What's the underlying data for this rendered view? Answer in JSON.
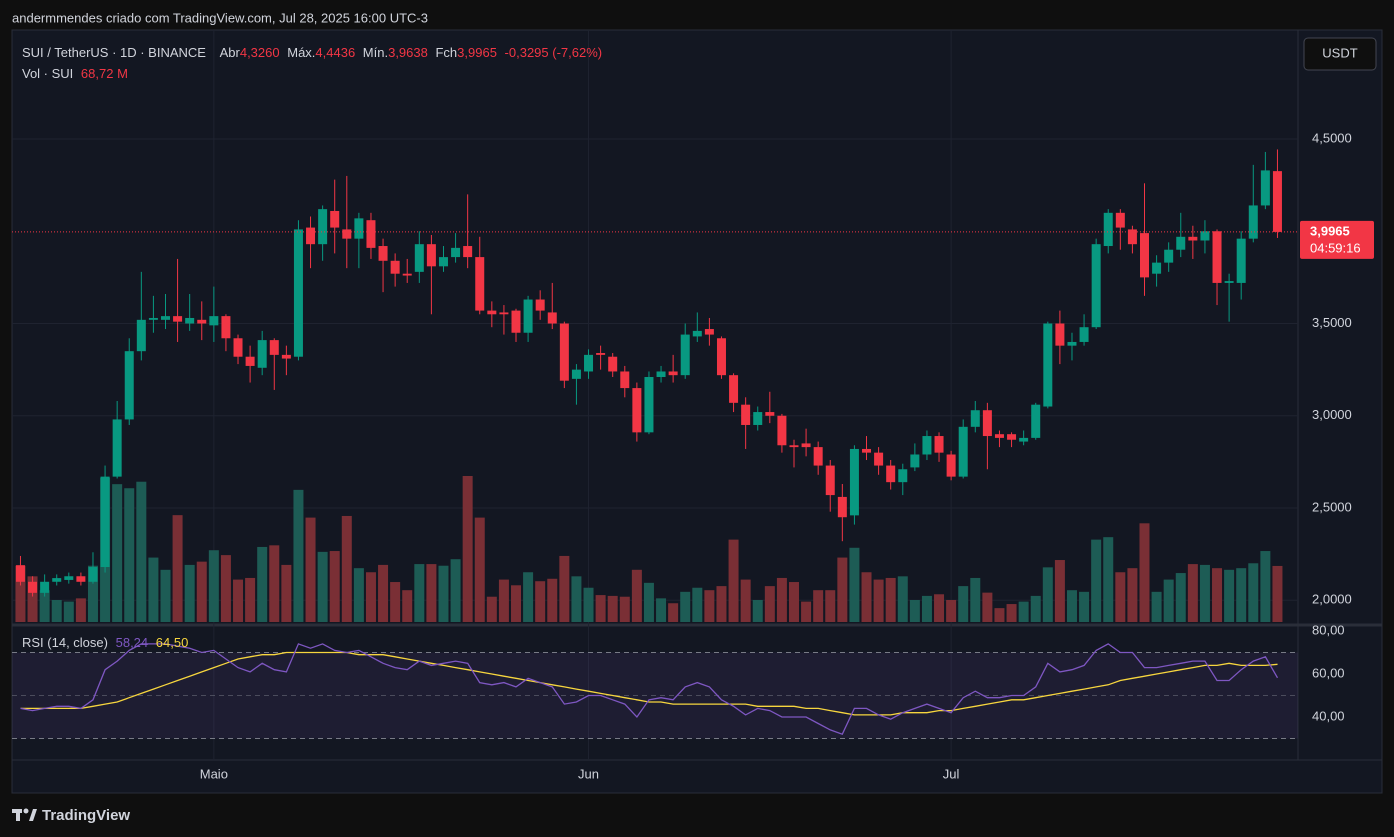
{
  "attribution": "andermmendes criado com TradingView.com, Jul 28, 2025 16:00 UTC-3",
  "logo": "TradingView",
  "currency_button": "USDT",
  "chart_data": [
    {
      "type": "candlestick",
      "title": "SUI / TetherUS · 1D · BINANCE",
      "legend": {
        "open_label": "Abr",
        "open": "4,3260",
        "high_label": "Máx.",
        "high": "4,4436",
        "low_label": "Mín.",
        "low": "3,9638",
        "close_label": "Fch",
        "close": "3,9965",
        "change": "-0,3295 (-7,62%)"
      },
      "volume_label": "Vol · SUI",
      "volume_value": "68,72 M",
      "price_tag": {
        "value_label": "3,9965",
        "countdown": "04:59:16"
      },
      "up_color": "#089981",
      "down_color": "#f23645",
      "volume_up_color": "#1d5c55",
      "volume_down_color": "#7a2f35",
      "ylim": [
        1.882,
        5.091
      ],
      "yticks": [
        {
          "value": 4.5,
          "label": "4,5000"
        },
        {
          "value": 3.5,
          "label": "3,5000"
        },
        {
          "value": 3.0,
          "label": "3,0000"
        },
        {
          "value": 2.5,
          "label": "2,5000"
        },
        {
          "value": 2.0,
          "label": "2,0000"
        }
      ],
      "xlim": [
        -0.7,
        105.7
      ],
      "xticks": [
        {
          "value": 16,
          "label": "Maio"
        },
        {
          "value": 47,
          "label": "Jun"
        },
        {
          "value": 77,
          "label": "Jul"
        }
      ],
      "open": [
        2.19,
        2.1,
        2.04,
        2.1,
        2.11,
        2.13,
        2.1,
        2.18,
        2.67,
        2.98,
        3.35,
        3.52,
        3.52,
        3.54,
        3.5,
        3.52,
        3.49,
        3.54,
        3.42,
        3.32,
        3.26,
        3.41,
        3.33,
        3.32,
        4.02,
        3.93,
        4.11,
        4.01,
        3.96,
        4.06,
        3.92,
        3.84,
        3.77,
        3.78,
        3.93,
        3.81,
        3.86,
        3.92,
        3.86,
        3.57,
        3.56,
        3.57,
        3.45,
        3.63,
        3.56,
        3.5,
        3.2,
        3.24,
        3.34,
        3.32,
        3.24,
        3.15,
        2.91,
        3.21,
        3.24,
        3.22,
        3.43,
        3.47,
        3.42,
        3.22,
        3.06,
        2.95,
        3.02,
        3.0,
        2.84,
        2.85,
        2.83,
        2.73,
        2.56,
        2.46,
        2.82,
        2.8,
        2.73,
        2.64,
        2.72,
        2.79,
        2.89,
        2.79,
        2.67,
        2.94,
        3.03,
        2.9,
        2.9,
        2.86,
        2.88,
        3.05,
        3.5,
        3.38,
        3.4,
        3.48,
        3.92,
        4.1,
        4.01,
        3.99,
        3.77,
        3.83,
        3.9,
        3.97,
        3.95,
        4.0,
        3.72,
        3.72,
        3.96,
        4.14,
        4.326
      ],
      "high": [
        2.24,
        2.13,
        2.14,
        2.14,
        2.15,
        2.15,
        2.26,
        2.73,
        3.08,
        3.42,
        3.78,
        3.65,
        3.66,
        3.85,
        3.66,
        3.62,
        3.7,
        3.55,
        3.44,
        3.38,
        3.46,
        3.42,
        3.38,
        4.06,
        4.08,
        4.14,
        4.28,
        4.3,
        4.1,
        4.1,
        3.96,
        3.88,
        3.85,
        4.0,
        3.98,
        3.92,
        3.99,
        4.2,
        3.97,
        3.62,
        3.6,
        3.58,
        3.65,
        3.68,
        3.72,
        3.51,
        3.28,
        3.36,
        3.38,
        3.34,
        3.27,
        3.18,
        3.24,
        3.27,
        3.33,
        3.5,
        3.56,
        3.53,
        3.43,
        3.23,
        3.1,
        3.05,
        3.13,
        3.01,
        2.87,
        2.93,
        2.86,
        2.76,
        2.63,
        2.84,
        2.89,
        2.83,
        2.76,
        2.74,
        2.85,
        2.92,
        2.91,
        2.81,
        2.98,
        3.08,
        3.07,
        2.92,
        2.91,
        2.92,
        3.07,
        3.51,
        3.57,
        3.45,
        3.55,
        3.96,
        4.12,
        4.12,
        4.03,
        4.26,
        3.87,
        3.94,
        4.1,
        4.03,
        4.06,
        4.01,
        3.77,
        4.0,
        4.36,
        4.43,
        4.4436
      ],
      "low": [
        2.08,
        2.02,
        2.02,
        2.08,
        2.09,
        2.08,
        2.09,
        2.15,
        2.66,
        2.95,
        3.3,
        3.45,
        3.47,
        3.4,
        3.46,
        3.41,
        3.4,
        3.35,
        3.28,
        3.18,
        3.22,
        3.14,
        3.22,
        3.3,
        3.8,
        3.84,
        3.88,
        3.8,
        3.8,
        3.85,
        3.67,
        3.7,
        3.72,
        3.72,
        3.55,
        3.78,
        3.83,
        3.8,
        3.55,
        3.48,
        3.44,
        3.4,
        3.4,
        3.52,
        3.47,
        3.15,
        3.06,
        3.2,
        3.25,
        3.21,
        3.1,
        2.86,
        2.9,
        3.18,
        3.18,
        3.2,
        3.4,
        3.38,
        3.2,
        3.02,
        2.82,
        2.92,
        2.96,
        2.8,
        2.72,
        2.78,
        2.68,
        2.48,
        2.32,
        2.41,
        2.76,
        2.68,
        2.6,
        2.57,
        2.7,
        2.76,
        2.75,
        2.65,
        2.66,
        2.91,
        2.71,
        2.83,
        2.83,
        2.84,
        2.87,
        3.04,
        3.28,
        3.3,
        3.38,
        3.47,
        3.88,
        3.9,
        3.88,
        3.65,
        3.7,
        3.78,
        3.86,
        3.85,
        3.88,
        3.6,
        3.51,
        3.63,
        3.94,
        4.12,
        3.9638
      ],
      "close": [
        2.1,
        2.04,
        2.1,
        2.12,
        2.13,
        2.1,
        2.18,
        2.67,
        2.98,
        3.35,
        3.52,
        3.53,
        3.54,
        3.51,
        3.53,
        3.5,
        3.54,
        3.42,
        3.32,
        3.27,
        3.41,
        3.33,
        3.31,
        4.01,
        3.93,
        4.12,
        4.02,
        3.96,
        4.07,
        3.91,
        3.84,
        3.77,
        3.76,
        3.93,
        3.81,
        3.86,
        3.91,
        3.86,
        3.57,
        3.55,
        3.55,
        3.45,
        3.63,
        3.57,
        3.5,
        3.19,
        3.25,
        3.33,
        3.33,
        3.24,
        3.15,
        2.91,
        3.21,
        3.24,
        3.22,
        3.44,
        3.46,
        3.44,
        3.22,
        3.07,
        2.95,
        3.02,
        3.0,
        2.84,
        2.83,
        2.83,
        2.73,
        2.57,
        2.45,
        2.82,
        2.8,
        2.73,
        2.64,
        2.71,
        2.79,
        2.89,
        2.8,
        2.67,
        2.94,
        3.03,
        2.89,
        2.88,
        2.87,
        2.88,
        3.06,
        3.5,
        3.38,
        3.4,
        3.48,
        3.93,
        4.1,
        4.02,
        3.93,
        3.75,
        3.83,
        3.9,
        3.97,
        3.95,
        4.0,
        3.72,
        3.73,
        3.96,
        4.14,
        4.33,
        3.9965
      ],
      "volume": [
        69,
        56,
        39,
        27,
        25,
        29,
        69,
        177,
        169,
        164,
        172,
        79,
        64,
        131,
        70,
        74,
        88,
        82,
        52,
        54,
        92,
        94,
        70,
        162,
        128,
        86,
        87,
        130,
        66,
        61,
        70,
        49,
        39,
        71,
        71,
        69,
        77,
        179,
        128,
        31,
        52,
        45,
        61,
        50,
        53,
        81,
        56,
        42,
        33,
        32,
        31,
        64,
        48,
        29,
        23,
        37,
        42,
        39,
        44,
        101,
        52,
        27,
        44,
        54,
        49,
        25,
        39,
        39,
        79,
        91,
        61,
        52,
        54,
        56,
        27,
        32,
        34,
        27,
        44,
        54,
        36,
        17,
        22,
        25,
        32,
        67,
        76,
        39,
        37,
        101,
        104,
        61,
        66,
        121,
        37,
        52,
        60,
        71,
        70,
        66,
        64,
        66,
        72,
        87,
        68.72
      ]
    },
    {
      "type": "line",
      "title": "RSI (14, close)",
      "ylim": [
        20,
        82.8
      ],
      "yticks": [
        {
          "value": 80,
          "label": "80,00"
        },
        {
          "value": 60,
          "label": "60,00"
        },
        {
          "value": 40,
          "label": "40,00"
        }
      ],
      "bands": [
        70,
        50,
        30
      ],
      "band_color": "#7e57c2",
      "series": [
        {
          "color": "#7e57c2",
          "last_label": "58,24",
          "values": [
            44,
            43,
            44,
            45,
            45,
            44,
            48,
            62,
            66,
            71,
            74,
            74,
            74,
            73,
            72,
            70,
            71,
            67,
            63,
            61,
            65,
            62,
            61,
            74,
            72,
            74,
            71,
            70,
            71,
            68,
            65,
            63,
            62,
            66,
            64,
            65,
            66,
            65,
            56,
            55,
            56,
            54,
            58,
            56,
            54,
            46,
            47,
            50,
            50,
            48,
            46,
            40,
            48,
            49,
            48,
            54,
            56,
            54,
            48,
            45,
            41,
            44,
            43,
            40,
            40,
            40,
            37,
            34,
            32,
            44,
            44,
            41,
            39,
            42,
            44,
            46,
            44,
            42,
            49,
            52,
            49,
            49,
            50,
            50,
            54,
            65,
            61,
            62,
            64,
            71,
            74,
            70,
            70,
            63,
            63,
            64,
            65,
            66,
            66,
            57,
            57,
            62,
            66,
            68,
            58.24
          ]
        },
        {
          "color": "#f7d63e",
          "last_label": "64,50",
          "values": [
            44,
            44,
            44,
            44,
            44,
            44,
            45,
            46,
            47,
            49,
            51,
            53,
            55,
            57,
            59,
            61,
            63,
            65,
            67,
            68,
            69,
            69,
            70,
            70,
            70,
            70,
            70,
            70,
            69,
            69,
            69,
            68,
            67,
            66,
            65,
            64,
            63,
            62,
            61,
            60,
            59,
            58,
            57,
            56,
            55,
            54,
            53,
            52,
            51,
            50,
            49,
            48,
            47,
            47,
            46,
            46,
            46,
            46,
            46,
            46,
            46,
            45,
            45,
            45,
            45,
            44,
            44,
            43,
            42,
            41,
            41,
            41,
            41,
            42,
            42,
            42,
            43,
            43,
            44,
            45,
            46,
            47,
            48,
            48,
            49,
            50,
            51,
            52,
            53,
            54,
            55,
            57,
            58,
            59,
            60,
            61,
            62,
            63,
            64,
            64,
            65,
            64,
            64,
            64,
            64.5
          ]
        }
      ]
    }
  ]
}
